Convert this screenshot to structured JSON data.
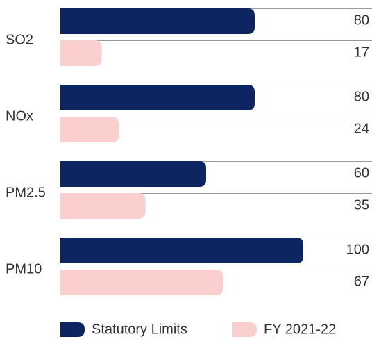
{
  "chart_data": {
    "type": "hbar",
    "categories": [
      "SO2",
      "NOx",
      "PM2.5",
      "PM10"
    ],
    "series": [
      {
        "name": "Statutory Limits",
        "color": "#0d2560",
        "values": [
          80,
          80,
          60,
          100
        ]
      },
      {
        "name": "FY 2021-22",
        "color": "#fccfcf",
        "values": [
          17,
          24,
          35,
          67
        ]
      }
    ],
    "xlim": [
      0,
      100
    ]
  }
}
